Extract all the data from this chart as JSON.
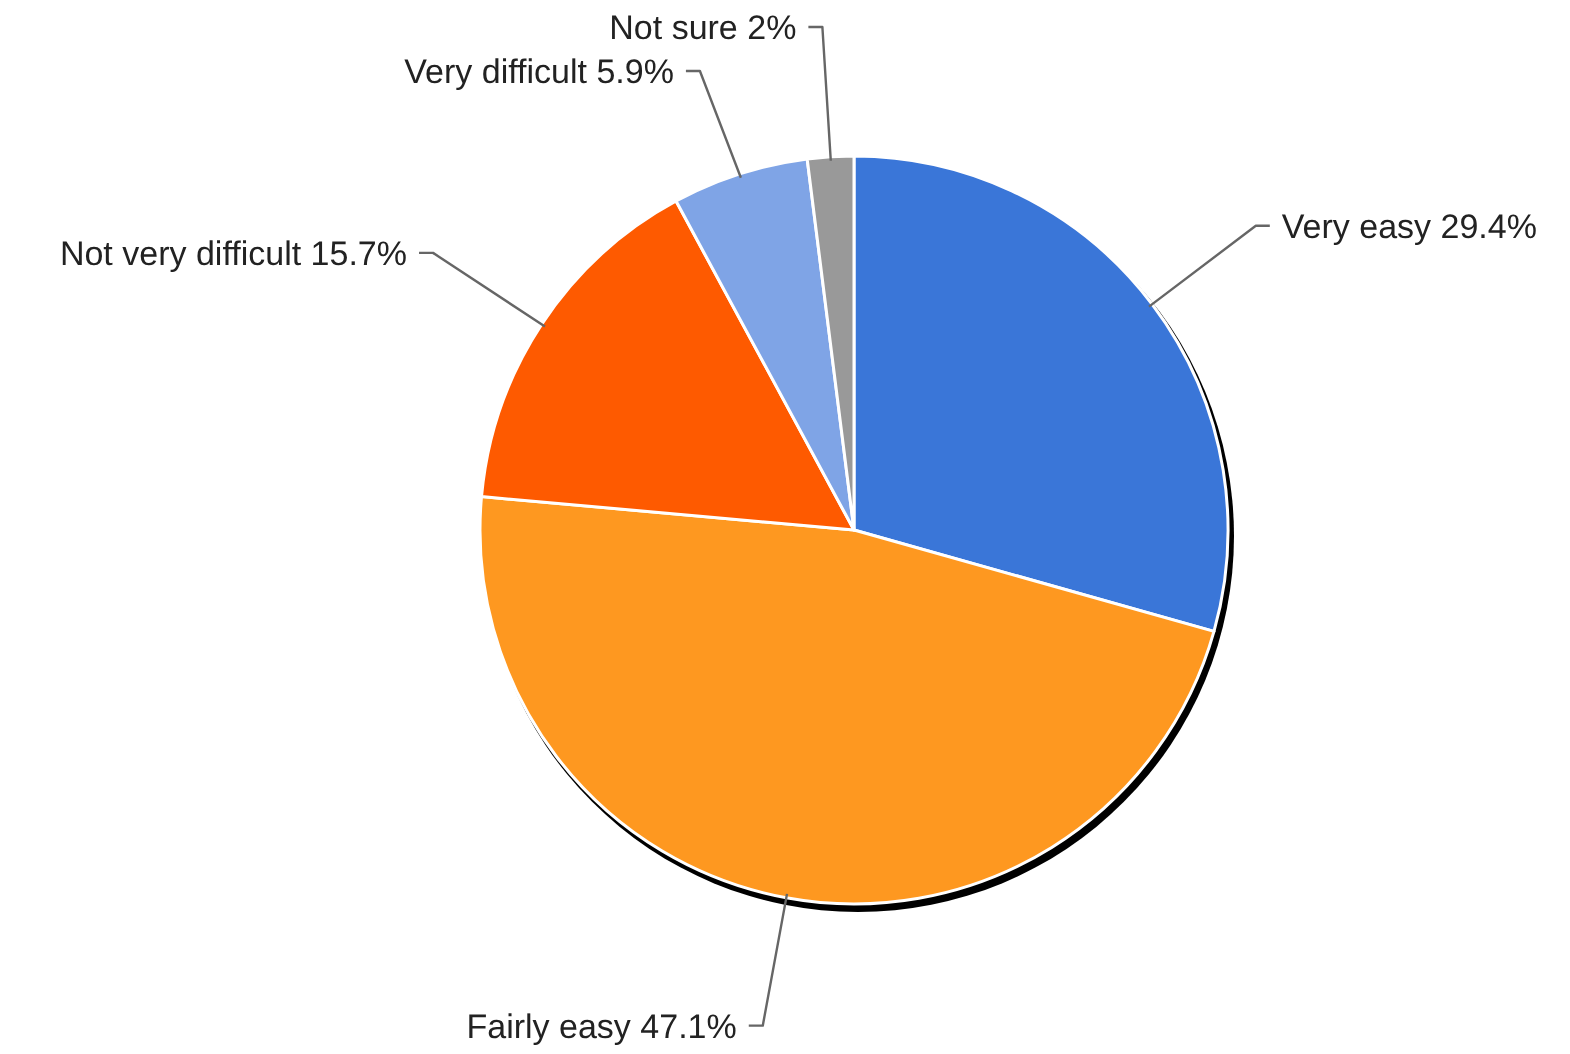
{
  "chart_data": {
    "type": "pie",
    "categories": [
      "Very easy",
      "Fairly easy",
      "Not very difficult",
      "Very difficult",
      "Not sure"
    ],
    "values": [
      29.4,
      47.1,
      15.7,
      5.9,
      2
    ],
    "colors": [
      "#3a76d8",
      "#fe9820",
      "#fe5a00",
      "#7fa4e6",
      "#999999"
    ],
    "value_labels": [
      "29.4%",
      "47.1%",
      "15.7%",
      "5.9%",
      "2%"
    ]
  }
}
